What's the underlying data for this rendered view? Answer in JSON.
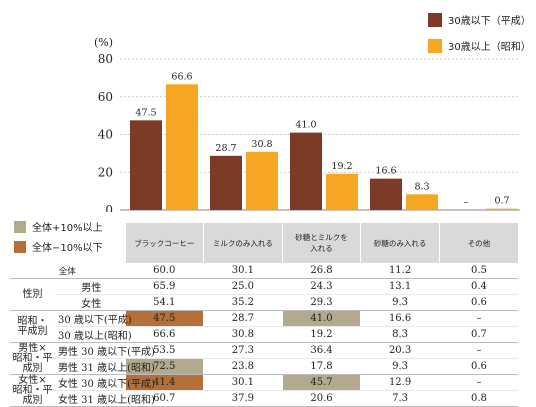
{
  "colors": {
    "pre": "#7b3b26",
    "post": "#f5a623",
    "highlight_plus": "#b3a98c",
    "highlight_minus": "#b5703a"
  },
  "legend": {
    "pre": "30歳以下（平成）",
    "post": "30歳以上（昭和）"
  },
  "chart_data": {
    "type": "bar",
    "unit_label": "(%)",
    "categories": [
      "ブラックコーヒー",
      "ミルクのみ入れる",
      "砂糖とミルクを入れる",
      "砂糖のみ入れる",
      "その他"
    ],
    "series": [
      {
        "name": "30歳以下（平成）",
        "values": [
          47.5,
          28.7,
          41.0,
          16.6,
          0
        ],
        "labels": [
          "47.5",
          "28.7",
          "41.0",
          "16.6",
          "–"
        ]
      },
      {
        "name": "30歳以上（昭和）",
        "values": [
          66.6,
          30.8,
          19.2,
          8.3,
          0.7
        ],
        "labels": [
          "66.6",
          "30.8",
          "19.2",
          "8.3",
          "0.7"
        ]
      }
    ],
    "ylim": [
      0,
      80
    ],
    "yticks": [
      "0",
      "20",
      "40",
      "60",
      "80"
    ]
  },
  "highlight_legend": {
    "plus": "全体+10%以上",
    "minus": "全体−10%以下"
  },
  "table": {
    "columns": [
      "ブラックコーヒー",
      "ミルクのみ入れる",
      "砂糖とミルクを\n入れる",
      "砂糖のみ入れる",
      "その他"
    ],
    "rows": [
      {
        "group": "",
        "label": "全体",
        "values": [
          "60.0",
          "30.1",
          "26.8",
          "11.2",
          "0.5"
        ],
        "hl": [
          null,
          null,
          null,
          null,
          null
        ]
      },
      {
        "group": "性別",
        "label": "男性",
        "values": [
          "65.9",
          "25.0",
          "24.3",
          "13.1",
          "0.4"
        ],
        "hl": [
          null,
          null,
          null,
          null,
          null
        ]
      },
      {
        "group": "",
        "label": "女性",
        "values": [
          "54.1",
          "35.2",
          "29.3",
          "9.3",
          "0.6"
        ],
        "hl": [
          null,
          null,
          null,
          null,
          null
        ]
      },
      {
        "group": "昭和・\n平成別",
        "label": "30 歳以下(平成)",
        "values": [
          "47.5",
          "28.7",
          "41.0",
          "16.6",
          "–"
        ],
        "hl": [
          "minus",
          null,
          "plus",
          null,
          null
        ]
      },
      {
        "group": "",
        "label": "30 歳以上(昭和)",
        "values": [
          "66.6",
          "30.8",
          "19.2",
          "8.3",
          "0.7"
        ],
        "hl": [
          null,
          null,
          null,
          null,
          null
        ]
      },
      {
        "group": "男性×\n昭和・平成別",
        "label": "男性 30 歳以下(平成)",
        "values": [
          "53.5",
          "27.3",
          "36.4",
          "20.3",
          "–"
        ],
        "hl": [
          null,
          null,
          null,
          null,
          null
        ]
      },
      {
        "group": "",
        "label": "男性 31 歳以上(昭和)",
        "values": [
          "72.5",
          "23.8",
          "17.8",
          "9.3",
          "0.6"
        ],
        "hl": [
          "plus",
          null,
          null,
          null,
          null
        ]
      },
      {
        "group": "女性×\n昭和・平成別",
        "label": "女性 30 歳以下(平成)",
        "values": [
          "41.4",
          "30.1",
          "45.7",
          "12.9",
          "–"
        ],
        "hl": [
          "minus",
          null,
          "plus",
          null,
          null
        ]
      },
      {
        "group": "",
        "label": "女性 31 歳以上(昭和)",
        "values": [
          "60.7",
          "37.9",
          "20.6",
          "7.3",
          "0.8"
        ],
        "hl": [
          null,
          null,
          null,
          null,
          null
        ]
      }
    ]
  }
}
